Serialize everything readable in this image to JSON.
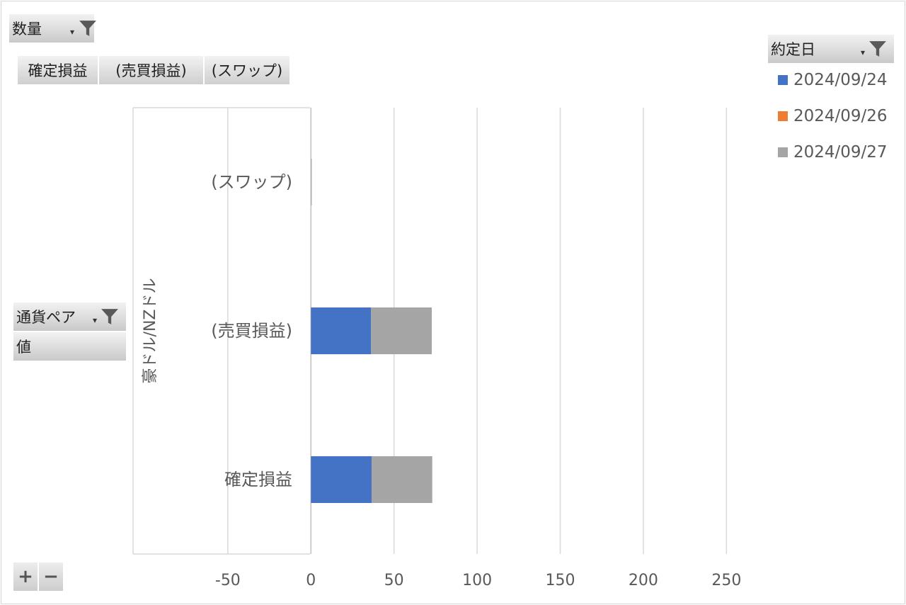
{
  "filters": {
    "quantity": {
      "label": "数量"
    },
    "trade_date": {
      "label": "約定日"
    },
    "currency_pair": {
      "label": "通貨ペア"
    },
    "values_field": {
      "label": "値"
    }
  },
  "value_fields": [
    "確定損益",
    "(売買損益)",
    "(スワップ)"
  ],
  "zoom": {
    "plus": "+",
    "minus": "−"
  },
  "colors": {
    "s1": "#4472c4",
    "s2": "#ed7d31",
    "s3": "#a5a5a5",
    "grid": "#d9d9d9"
  },
  "chart_data": {
    "type": "bar",
    "orientation": "horizontal",
    "stacked": true,
    "group_label": "豪ドル/NZドル",
    "categories": [
      "確定損益",
      "(売買損益)",
      "(スワップ)"
    ],
    "series": [
      {
        "name": "2024/09/24",
        "values": [
          36.5,
          36.2,
          0
        ]
      },
      {
        "name": "2024/09/26",
        "values": [
          0,
          0,
          0
        ]
      },
      {
        "name": "2024/09/27",
        "values": [
          36.5,
          36.5,
          0.5
        ]
      }
    ],
    "xlim": [
      -107,
      272
    ],
    "x_ticks": [
      -50,
      0,
      50,
      100,
      150,
      200,
      250
    ],
    "tick_labels": [
      "-50",
      "0",
      "50",
      "100",
      "150",
      "200",
      "250"
    ],
    "legend_position": "right",
    "grid": true
  }
}
